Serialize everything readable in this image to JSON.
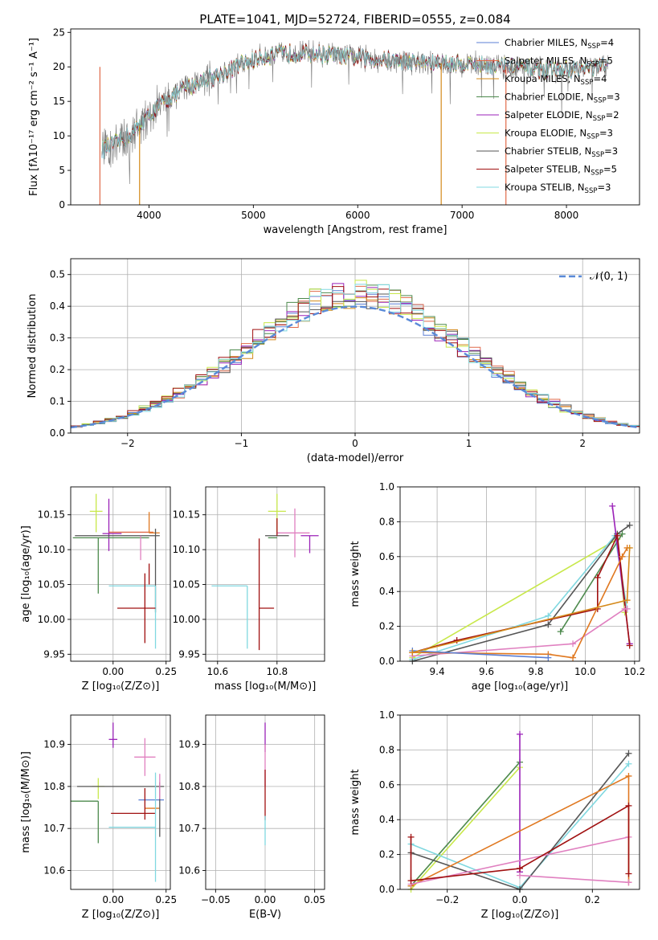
{
  "title": "PLATE=1041, MJD=52724, FIBERID=0555, z=0.084",
  "colors": {
    "Chabrier MILES": "#5b7fd4",
    "Salpeter MILES": "#e06a4a",
    "Kroupa MILES": "#d4891a",
    "Chabrier ELODIE": "#4d8a4d",
    "Salpeter ELODIE": "#9b22b8",
    "Kroupa ELODIE": "#c8e84a",
    "Chabrier STELIB": "#555555",
    "Salpeter STELIB": "#a01010",
    "Kroupa STELIB": "#80d8e0",
    "gaussian": "#5a8ad8",
    "pink": "#e080c0",
    "orange": "#e07820"
  },
  "legend_spectrum": [
    {
      "name": "Chabrier MILES",
      "text": "Chabrier MILES, N",
      "sub": "SSP",
      "tail": "=4"
    },
    {
      "name": "Salpeter MILES",
      "text": "Salpeter MILES, N",
      "sub": "SSP",
      "tail": "=5"
    },
    {
      "name": "Kroupa MILES",
      "text": "Kroupa MILES, N",
      "sub": "SSP",
      "tail": "=4"
    },
    {
      "name": "Chabrier ELODIE",
      "text": "Chabrier ELODIE, N",
      "sub": "SSP",
      "tail": "=3"
    },
    {
      "name": "Salpeter ELODIE",
      "text": "Salpeter ELODIE, N",
      "sub": "SSP",
      "tail": "=2"
    },
    {
      "name": "Kroupa ELODIE",
      "text": "Kroupa ELODIE, N",
      "sub": "SSP",
      "tail": "=3"
    },
    {
      "name": "Chabrier STELIB",
      "text": "Chabrier STELIB, N",
      "sub": "SSP",
      "tail": "=3"
    },
    {
      "name": "Salpeter STELIB",
      "text": "Salpeter STELIB, N",
      "sub": "SSP",
      "tail": "=5"
    },
    {
      "name": "Kroupa STELIB",
      "text": "Kroupa STELIB, N",
      "sub": "SSP",
      "tail": "=3"
    }
  ],
  "chart_data": [
    {
      "id": "spectrum",
      "type": "line",
      "xlabel": "wavelength [Angstrom, rest frame]",
      "ylabel": "Flux [f",
      "ylabel_full": "Flux [fλ10⁻¹⁷ erg cm⁻² s⁻¹ A⁻¹]",
      "xlim": [
        3250,
        8700
      ],
      "ylim": [
        0,
        25.5
      ],
      "xticks": [
        4000,
        5000,
        6000,
        7000,
        8000
      ],
      "yticks": [
        0,
        5,
        10,
        15,
        20,
        25
      ],
      "continuum": [
        [
          3550,
          8
        ],
        [
          3700,
          9
        ],
        [
          3850,
          10.5
        ],
        [
          4000,
          13
        ],
        [
          4150,
          15
        ],
        [
          4300,
          16.5
        ],
        [
          4500,
          18
        ],
        [
          4700,
          19
        ],
        [
          4900,
          20.5
        ],
        [
          5100,
          21.5
        ],
        [
          5300,
          22
        ],
        [
          5500,
          22
        ],
        [
          5700,
          21.8
        ],
        [
          5900,
          21.5
        ],
        [
          6100,
          21.2
        ],
        [
          6300,
          21
        ],
        [
          6500,
          20.8
        ],
        [
          6700,
          20.6
        ],
        [
          6900,
          20.5
        ],
        [
          7100,
          20.4
        ],
        [
          7300,
          20.2
        ],
        [
          7500,
          20
        ],
        [
          7800,
          19.5
        ],
        [
          8000,
          19.6
        ],
        [
          8200,
          19.8
        ],
        [
          8400,
          20
        ]
      ],
      "drops": [
        3530,
        3910,
        6800,
        7420
      ]
    },
    {
      "id": "residuals",
      "type": "histogram",
      "xlabel": "(data-model)/error",
      "ylabel": "Normed distribution",
      "xlim": [
        -2.5,
        2.5
      ],
      "ylim": [
        0,
        0.55
      ],
      "xticks": [
        -2,
        -1,
        0,
        1,
        2
      ],
      "yticks": [
        0.0,
        0.1,
        0.2,
        0.3,
        0.4,
        0.5
      ],
      "legend": "𝒩(0, 1)",
      "bin_width": 0.1
    },
    {
      "id": "age_vs_Z",
      "type": "errorbar",
      "xlabel": "Z [log₁₀(Z/Z⊙)]",
      "ylabel": "age  [log₁₀(age/yr)]",
      "xlim": [
        -0.2,
        0.27
      ],
      "ylim": [
        9.94,
        10.19
      ],
      "xticks": [
        0.0,
        0.25
      ],
      "yticks": [
        9.95,
        10.0,
        10.05,
        10.1,
        10.15
      ],
      "points": [
        {
          "c": "Kroupa ELODIE",
          "x": -0.08,
          "xe": [
            0.03,
            0.03
          ],
          "y": 10.155,
          "ye": [
            0.03,
            0.025
          ]
        },
        {
          "c": "Salpeter ELODIE",
          "x": -0.02,
          "xe": [
            0.03,
            0.06
          ],
          "y": 10.123,
          "ye": [
            0.025,
            0.05
          ]
        },
        {
          "c": "Chabrier ELODIE",
          "x": -0.07,
          "xe": [
            0.12,
            0.24
          ],
          "y": 10.117,
          "ye": [
            0.08,
            0.0
          ]
        },
        {
          "c": "Chabrier STELIB",
          "x": 0.12,
          "xe": [
            0.3,
            0.1
          ],
          "y": 10.12,
          "ye": [
            0.0,
            0.0
          ]
        },
        {
          "c": "Salpeter MILES",
          "x": 0.07,
          "xe": [
            0.09,
            0.12
          ],
          "y": 10.125,
          "ye": [
            0.0,
            0.0
          ]
        },
        {
          "c": "orange",
          "x": 0.17,
          "xe": [
            0.0,
            0.05
          ],
          "y": 10.124,
          "ye": [
            0.0,
            0.03
          ]
        },
        {
          "c": "pink",
          "x": 0.13,
          "xe": [
            0.0,
            0.0
          ],
          "y": 10.12,
          "ye": [
            0.035,
            0.0
          ]
        },
        {
          "c": "Chabrier STELIB",
          "x": 0.2,
          "xe": [
            0.0,
            0.0
          ],
          "y": 10.12,
          "ye": [
            0.11,
            0.01
          ]
        },
        {
          "c": "Kroupa STELIB",
          "x": -0.02,
          "xe": [
            0.0,
            0.22
          ],
          "y": 10.048,
          "ye": [
            0.0,
            0.0
          ]
        },
        {
          "c": "Kroupa STELIB",
          "x": 0.2,
          "xe": [
            0.0,
            0.0
          ],
          "y": 10.048,
          "ye": [
            0.09,
            0.0
          ]
        },
        {
          "c": "Salpeter STELIB",
          "x": 0.15,
          "xe": [
            0.13,
            0.05
          ],
          "y": 10.016,
          "ye": [
            0.05,
            0.05
          ]
        },
        {
          "c": "Salpeter STELIB",
          "x": 0.17,
          "xe": [
            0.0,
            0.0
          ],
          "y": 10.05,
          "ye": [
            0.0,
            0.03
          ]
        }
      ]
    },
    {
      "id": "age_vs_mass",
      "type": "errorbar",
      "xlabel": "mass [log₁₀(M/M⊙)]",
      "xlim": [
        10.56,
        10.96
      ],
      "ylim": [
        9.94,
        10.19
      ],
      "xticks": [
        10.6,
        10.8
      ],
      "yticks": [
        9.95,
        10.0,
        10.05,
        10.1,
        10.15
      ],
      "points": [
        {
          "c": "Kroupa ELODIE",
          "x": 10.8,
          "xe": [
            0.03,
            0.03
          ],
          "y": 10.155,
          "ye": [
            0.03,
            0.025
          ]
        },
        {
          "c": "Salpeter ELODIE",
          "x": 10.91,
          "xe": [
            0.03,
            0.03
          ],
          "y": 10.12,
          "ye": [
            0.025,
            0.0
          ]
        },
        {
          "c": "pink",
          "x": 10.86,
          "xe": [
            0.06,
            0.05
          ],
          "y": 10.124,
          "ye": [
            0.035,
            0.035
          ]
        },
        {
          "c": "Chabrier STELIB",
          "x": 10.8,
          "xe": [
            0.04,
            0.04
          ],
          "y": 10.12,
          "ye": [
            0.0,
            0.0
          ]
        },
        {
          "c": "Chabrier ELODIE",
          "x": 10.77,
          "xe": [
            0.0,
            0.03
          ],
          "y": 10.117,
          "ye": [
            0.0,
            0.0
          ]
        },
        {
          "c": "Salpeter STELIB",
          "x": 10.8,
          "xe": [
            0.0,
            0.0
          ],
          "y": 10.12,
          "ye": [
            0.0,
            0.025
          ]
        },
        {
          "c": "Kroupa STELIB",
          "x": 10.7,
          "xe": [
            0.12,
            0.0
          ],
          "y": 10.048,
          "ye": [
            0.09,
            0.0
          ]
        },
        {
          "c": "Salpeter STELIB",
          "x": 10.74,
          "xe": [
            0.0,
            0.05
          ],
          "y": 10.016,
          "ye": [
            0.06,
            0.1
          ]
        }
      ]
    },
    {
      "id": "weight_vs_age",
      "type": "line",
      "xlabel": "age  [log₁₀(age/yr)]",
      "ylabel": "mass weight",
      "xlim": [
        9.25,
        10.22
      ],
      "ylim": [
        0,
        1.0
      ],
      "xticks": [
        9.4,
        9.6,
        9.8,
        10.0,
        10.2
      ],
      "yticks": [
        0.0,
        0.2,
        0.4,
        0.6,
        0.8,
        1.0
      ],
      "series": [
        {
          "c": "Kroupa ELODIE",
          "x": [
            9.3,
            10.13,
            10.16
          ],
          "y": [
            0.02,
            0.7,
            0.28
          ]
        },
        {
          "c": "Kroupa STELIB",
          "x": [
            9.3,
            9.85,
            10.12,
            10.17
          ],
          "y": [
            0.01,
            0.26,
            0.72,
            0.3
          ]
        },
        {
          "c": "Chabrier STELIB",
          "x": [
            9.3,
            9.85,
            10.13,
            10.18
          ],
          "y": [
            0.0,
            0.21,
            0.73,
            0.78
          ]
        },
        {
          "c": "Chabrier ELODIE",
          "x": [
            9.9,
            10.15
          ],
          "y": [
            0.17,
            0.73
          ]
        },
        {
          "c": "Salpeter ELODIE",
          "x": [
            10.11,
            10.18
          ],
          "y": [
            0.89,
            0.1
          ]
        },
        {
          "c": "Salpeter STELIB",
          "x": [
            9.3,
            9.48,
            10.05,
            10.05,
            10.13,
            10.18
          ],
          "y": [
            0.05,
            0.12,
            0.3,
            0.48,
            0.72,
            0.09
          ]
        },
        {
          "c": "pink",
          "x": [
            9.3,
            9.95,
            10.16,
            10.17
          ],
          "y": [
            0.03,
            0.1,
            0.3,
            0.3
          ]
        },
        {
          "c": "orange",
          "x": [
            9.3,
            9.85,
            9.95,
            10.15,
            10.17
          ],
          "y": [
            0.05,
            0.04,
            0.02,
            0.6,
            0.65
          ]
        },
        {
          "c": "Chabrier MILES",
          "x": [
            9.3,
            9.85
          ],
          "y": [
            0.06,
            0.02
          ]
        },
        {
          "c": "Kroupa MILES",
          "x": [
            9.3,
            10.17,
            10.18
          ],
          "y": [
            0.05,
            0.35,
            0.65
          ]
        }
      ]
    },
    {
      "id": "mass_vs_Z",
      "type": "errorbar",
      "xlabel": "Z [log₁₀(Z/Z⊙)]",
      "ylabel": "mass [log₁₀(M/M⊙)]",
      "xlim": [
        -0.2,
        0.27
      ],
      "ylim": [
        10.555,
        10.97
      ],
      "xticks": [
        0.0,
        0.25
      ],
      "yticks": [
        10.6,
        10.7,
        10.8,
        10.9
      ],
      "points": [
        {
          "c": "Salpeter ELODIE",
          "x": 0.0,
          "xe": [
            0.02,
            0.02
          ],
          "y": 10.912,
          "ye": [
            0.02,
            0.04
          ]
        },
        {
          "c": "pink",
          "x": 0.15,
          "xe": [
            0.05,
            0.05
          ],
          "y": 10.87,
          "ye": [
            0.045,
            0.045
          ]
        },
        {
          "c": "Kroupa ELODIE",
          "x": -0.07,
          "xe": [
            0.03,
            0.03
          ],
          "y": 10.8,
          "ye": [
            0.03,
            0.02
          ]
        },
        {
          "c": "Chabrier STELIB",
          "x": 0.1,
          "xe": [
            0.27,
            0.14
          ],
          "y": 10.8,
          "ye": [
            0.0,
            0.0
          ]
        },
        {
          "c": "Chabrier ELODIE",
          "x": -0.07,
          "xe": [
            0.13,
            0.0
          ],
          "y": 10.765,
          "ye": [
            0.1,
            0.0
          ]
        },
        {
          "c": "Chabrier MILES",
          "x": 0.12,
          "xe": [
            0.0,
            0.12
          ],
          "y": 10.768,
          "ye": [
            0.0,
            0.0
          ]
        },
        {
          "c": "orange",
          "x": 0.15,
          "xe": [
            0.0,
            0.07
          ],
          "y": 10.748,
          "ye": [
            0.0,
            0.0
          ]
        },
        {
          "c": "Salpeter STELIB",
          "x": 0.15,
          "xe": [
            0.16,
            0.05
          ],
          "y": 10.736,
          "ye": [
            0.015,
            0.06
          ]
        },
        {
          "c": "Kroupa STELIB",
          "x": 0.2,
          "xe": [
            0.22,
            0.0
          ],
          "y": 10.703,
          "ye": [
            0.13,
            0.13
          ]
        },
        {
          "c": "Chabrier STELIB",
          "x": 0.22,
          "xe": [
            0.0,
            0.0
          ],
          "y": 10.77,
          "ye": [
            0.09,
            0.04
          ]
        },
        {
          "c": "pink",
          "x": 0.22,
          "xe": [
            0.0,
            0.0
          ],
          "y": 10.77,
          "ye": [
            0.0,
            0.06
          ]
        }
      ]
    },
    {
      "id": "mass_vs_ebv",
      "type": "errorbar",
      "xlabel": "E(B-V)",
      "xlim": [
        -0.06,
        0.06
      ],
      "ylim": [
        10.555,
        10.97
      ],
      "xticks": [
        -0.05,
        0.0,
        0.05
      ],
      "xticklabels": [
        "−0.05",
        "0.00",
        "0.05"
      ],
      "yticks": [
        10.6,
        10.7,
        10.8,
        10.9
      ],
      "points": [
        {
          "c": "Salpeter ELODIE",
          "x": 0.0,
          "xe": [
            0.0,
            0.0
          ],
          "y": 10.912,
          "ye": [
            0.03,
            0.04
          ]
        },
        {
          "c": "pink",
          "x": 0.0,
          "xe": [
            0.0,
            0.0
          ],
          "y": 10.85,
          "ye": [
            0.05,
            0.05
          ]
        },
        {
          "c": "Salpeter STELIB",
          "x": 0.0,
          "xe": [
            0.0,
            0.0
          ],
          "y": 10.78,
          "ye": [
            0.06,
            0.06
          ]
        },
        {
          "c": "Kroupa STELIB",
          "x": 0.0,
          "xe": [
            0.0,
            0.0
          ],
          "y": 10.7,
          "ye": [
            0.04,
            0.03
          ]
        }
      ]
    },
    {
      "id": "weight_vs_Z",
      "type": "line",
      "xlabel": "Z [log₁₀(Z/Z⊙)]",
      "ylabel": "mass weight",
      "xlim": [
        -0.33,
        0.33
      ],
      "ylim": [
        0,
        1.0
      ],
      "xticks": [
        -0.2,
        0.0,
        0.2
      ],
      "xticklabels": [
        "−0.2",
        "0.0",
        "0.2"
      ],
      "yticks": [
        0.0,
        0.2,
        0.4,
        0.6,
        0.8,
        1.0
      ],
      "series": [
        {
          "c": "Chabrier ELODIE",
          "x": [
            -0.3,
            0.0
          ],
          "y": [
            0.02,
            0.73
          ]
        },
        {
          "c": "Kroupa ELODIE",
          "x": [
            -0.3,
            0.0
          ],
          "y": [
            0.0,
            0.7
          ]
        },
        {
          "c": "Salpeter ELODIE",
          "x": [
            0.0,
            0.0
          ],
          "y": [
            0.1,
            0.89
          ]
        },
        {
          "c": "Kroupa STELIB",
          "x": [
            -0.3,
            0.0,
            0.3
          ],
          "y": [
            0.26,
            0.01,
            0.72
          ]
        },
        {
          "c": "Chabrier STELIB",
          "x": [
            -0.3,
            0.0,
            0.3
          ],
          "y": [
            0.21,
            0.0,
            0.78
          ]
        },
        {
          "c": "orange",
          "x": [
            -0.3,
            0.3,
            0.3
          ],
          "y": [
            0.02,
            0.65,
            0.04
          ]
        },
        {
          "c": "pink",
          "x": [
            -0.3,
            0.3
          ],
          "y": [
            0.03,
            0.3
          ]
        },
        {
          "c": "Salpeter STELIB",
          "x": [
            -0.3,
            -0.3,
            0.0,
            0.3,
            0.3
          ],
          "y": [
            0.3,
            0.05,
            0.12,
            0.48,
            0.09
          ]
        },
        {
          "c": "pink",
          "x": [
            0.0,
            0.3
          ],
          "y": [
            0.08,
            0.04
          ]
        }
      ]
    }
  ]
}
